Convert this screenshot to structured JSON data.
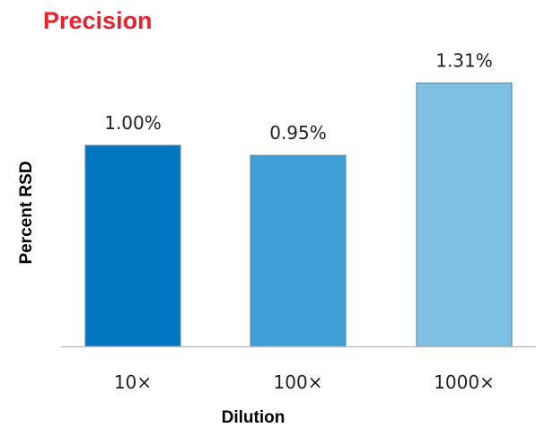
{
  "chart_data": {
    "type": "bar",
    "title": "Precision",
    "xlabel": "Dilution",
    "ylabel": "Percent RSD",
    "categories": [
      "10×",
      "100×",
      "1000×"
    ],
    "values": [
      1.0,
      0.95,
      1.31
    ],
    "data_labels": [
      "1.00%",
      "0.95%",
      "1.31%"
    ],
    "bar_colors": [
      "#0077c0",
      "#3f9fd6",
      "#7ec0e3"
    ],
    "ylim": [
      0,
      1.5
    ],
    "grid": false,
    "legend": "none"
  },
  "colors": {
    "title": "#e8212e",
    "axis": "#bfbfbf",
    "bar_border": "#5b7f99",
    "text": "#222222"
  }
}
